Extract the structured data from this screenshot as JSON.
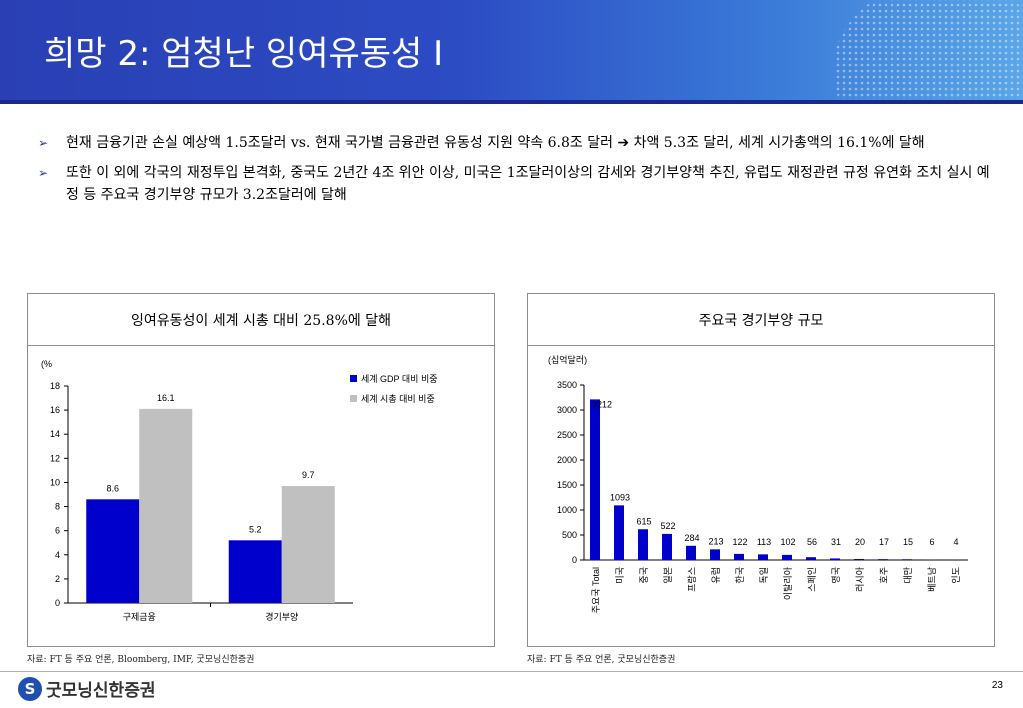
{
  "header": {
    "title": "희망 2: 엄청난 잉여유동성 I",
    "accent_color": "#2c4cc4"
  },
  "bullets": [
    {
      "icon": "arrow-bullet-icon",
      "text": "현재 금융기관 손실 예상액 1.5조달러 vs. 현재 국가별 금융관련 유동성 지원 약속 6.8조 달러 ➔ 차액 5.3조 달러, 세계 시가총액의 16.1%에 달해"
    },
    {
      "icon": "arrow-bullet-icon",
      "text": "또한 이 외에 각국의 재정투입 본격화, 중국도 2년간 4조 위안 이상, 미국은 1조달러이상의 감세와 경기부양책 추진, 유럽도 재정관련 규정 유연화 조치 실시 예정 등 주요국 경기부양 규모가 3.2조달러에 달해"
    }
  ],
  "left_panel": {
    "title": "잉여유동성이 세계 시총 대비 25.8%에 달해",
    "source": "자료: FT 등 주요 언론, Bloomberg, IMF, 굿모닝신한증권"
  },
  "right_panel": {
    "title": "주요국 경기부양 규모",
    "source": "자료: FT 등 주요 언론, 굿모닝신한증권"
  },
  "footer": {
    "logo_text": "굿모닝신한증권",
    "page_number": "23"
  },
  "chart_data": [
    {
      "type": "bar",
      "unit_label": "(%",
      "categories": [
        "구제금융",
        "경기부양"
      ],
      "series": [
        {
          "name": "세계 GDP 대비 비중",
          "values": [
            8.6,
            5.2
          ],
          "color": "#0000cc"
        },
        {
          "name": "세계 시총 대비 비중",
          "values": [
            16.1,
            9.7
          ],
          "color": "#c0c0c0"
        }
      ],
      "ylim": [
        0,
        18
      ],
      "yticks": [
        "0",
        "2",
        "4",
        "6",
        "8",
        "10",
        "12",
        "14",
        "16",
        "18"
      ],
      "legend": "top-right",
      "grid": false
    },
    {
      "type": "bar",
      "unit_label": "(십억달러)",
      "categories": [
        "주요국 Total",
        "미국",
        "중국",
        "일본",
        "프랑스",
        "유럽",
        "한국",
        "독일",
        "이탈리아",
        "스페인",
        "영국",
        "러시아",
        "호주",
        "대만",
        "베트남",
        "인도"
      ],
      "values": [
        3212,
        1093,
        615,
        522,
        284,
        213,
        122,
        113,
        102,
        56,
        31,
        20,
        17,
        15,
        6,
        4
      ],
      "color": "#0000cc",
      "ylim": [
        0,
        3500
      ],
      "yticks": [
        "0",
        "500",
        "1000",
        "1500",
        "2000",
        "2500",
        "3000",
        "3500"
      ],
      "grid": false
    }
  ]
}
